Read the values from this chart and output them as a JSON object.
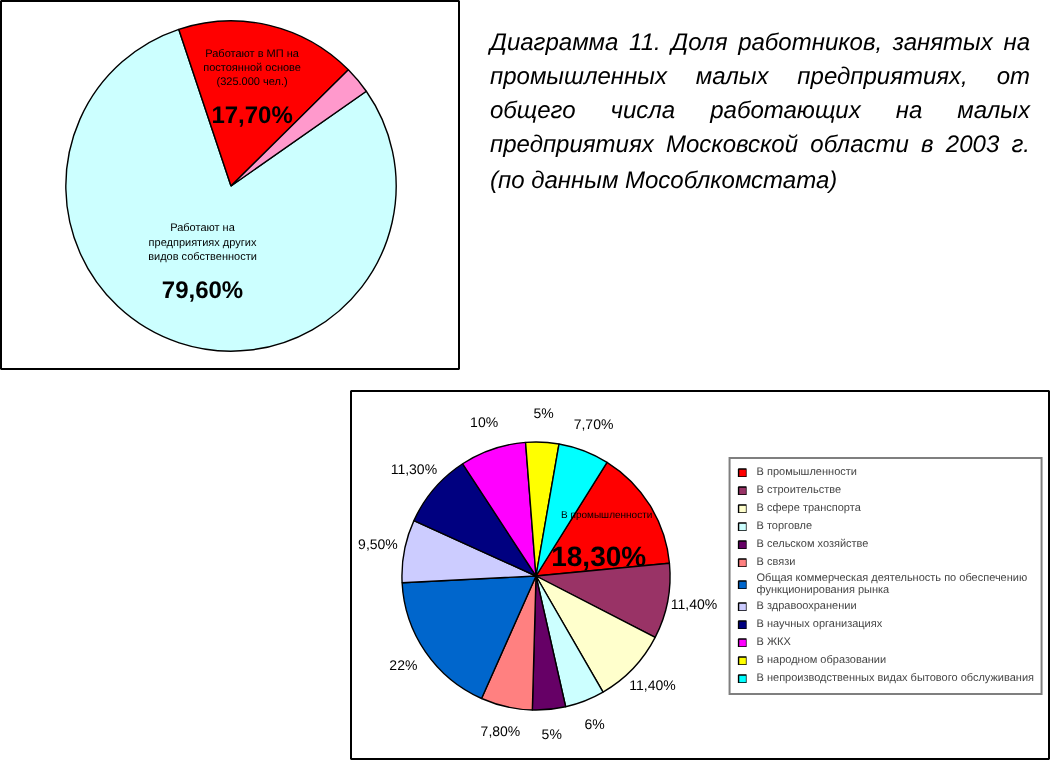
{
  "chart_data": [
    {
      "type": "pie",
      "title": "Диаграмма 11. Доля работников, занятых на промышленных малых предприятиях, от общего числа работающих на малых предприятиях Московской области в 2003 г. (по данным Мособлкомстата)",
      "categories": [
        "Работают на предприятиях других видов собственности",
        "Работают в МП на постоянной основе (325.000 чел.)",
        null
      ],
      "values": [
        79.6,
        17.7,
        2.7
      ],
      "colors": [
        "#ccffff",
        "#ff0000",
        "#ff99cc"
      ],
      "value_labels": [
        "79,60%",
        "17,70%",
        null
      ],
      "legend": false
    },
    {
      "type": "pie",
      "categories": [
        "В промышленности",
        "В строительстве",
        "В сфере транспорта",
        "В торговле",
        "В сельском хозяйстве",
        "В связи",
        "Общая коммерческая деятельность по обеспечению функционирования рынка",
        "В здравоохранении",
        "В научных организациях",
        "В ЖКХ",
        "В народном образовании",
        "В непроизводственных видах бытового обслуживания"
      ],
      "values": [
        18.3,
        11.4,
        11.4,
        6,
        5,
        7.8,
        22,
        9.5,
        11.3,
        10,
        5,
        7.7
      ],
      "colors": [
        "#ff0000",
        "#993366",
        "#ffffcc",
        "#ccffff",
        "#660066",
        "#ff8080",
        "#0066cc",
        "#ccccff",
        "#000080",
        "#ff00ff",
        "#ffff00",
        "#00ffff"
      ],
      "value_labels": [
        "18,30%",
        "11,40%",
        "11,40%",
        "6%",
        "5%",
        "7,80%",
        "22%",
        "9,50%",
        "11,30%",
        "10%",
        "5%",
        "7,70%"
      ],
      "annotations": [
        "В промышленности"
      ],
      "legend": "right"
    }
  ]
}
